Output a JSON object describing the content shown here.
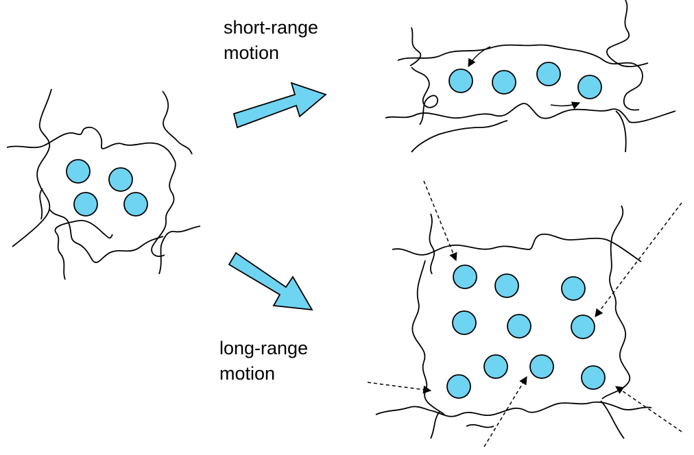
{
  "labels": {
    "short_range": [
      "short-range",
      "motion"
    ],
    "long_range": [
      "long-range",
      "motion"
    ]
  },
  "colors": {
    "particle_fill": "#6fd3f2",
    "arrow_fill": "#6fd3f2",
    "stroke": "#000000"
  }
}
